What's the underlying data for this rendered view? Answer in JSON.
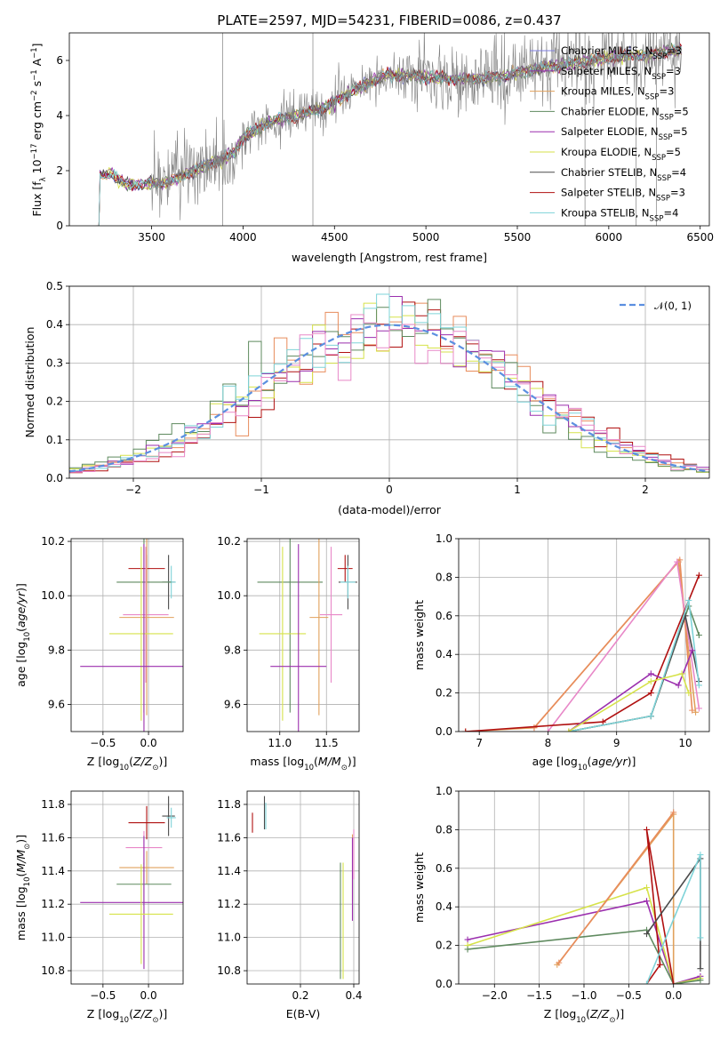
{
  "chart_data": [
    {
      "type": "line",
      "title": "PLATE=2597, MJD=54231, FIBERID=0086, z=0.437",
      "xlabel": "wavelength [Angstrom, rest frame]",
      "ylabel": "Flux [f$_\\lambda$ 10$^{-17}$ erg cm$^{-2}$ s$^{-1}$ A$^{-1}$]",
      "ylabel_parts": [
        "Flux [f",
        "λ",
        "10",
        "−17",
        " erg cm",
        "−2",
        " s",
        "−1",
        " A",
        "−1",
        "]"
      ],
      "xlim": [
        3050,
        6550
      ],
      "ylim": [
        0,
        7
      ],
      "xticks": [
        3500,
        4000,
        4500,
        5000,
        5500,
        6000,
        6500
      ],
      "yticks": [
        0,
        2,
        4,
        6
      ],
      "grid": false,
      "legend_position": "top-right",
      "continuum_knots": {
        "x": [
          3200,
          3280,
          3350,
          3450,
          3600,
          3800,
          3950,
          4000,
          4150,
          4300,
          4450,
          4600,
          4800,
          5000,
          5200,
          5400,
          5600,
          5800,
          6000,
          6200,
          6400
        ],
        "y": [
          1.8,
          1.9,
          1.5,
          1.5,
          1.6,
          2.2,
          2.6,
          3.2,
          3.8,
          4.0,
          4.3,
          4.9,
          5.5,
          5.4,
          5.3,
          5.4,
          5.7,
          5.9,
          6.1,
          6.2,
          6.4
        ]
      },
      "data_series": {
        "name": "data",
        "color": "#808080"
      },
      "series": [
        {
          "name": "Chabrier MILES",
          "nssp": 3,
          "color": "#7f7fe0"
        },
        {
          "name": "Salpeter MILES",
          "nssp": 3,
          "color": "#8e3ba7"
        },
        {
          "name": "Kroupa MILES",
          "nssp": 3,
          "color": "#e1a15c"
        },
        {
          "name": "Chabrier ELODIE",
          "nssp": 5,
          "color": "#5f8a5f"
        },
        {
          "name": "Salpeter ELODIE",
          "nssp": 5,
          "color": "#9b2fae"
        },
        {
          "name": "Kroupa ELODIE",
          "nssp": 5,
          "color": "#d6e24a"
        },
        {
          "name": "Chabrier STELIB",
          "nssp": 4,
          "color": "#4b4b4b"
        },
        {
          "name": "Salpeter STELIB",
          "nssp": 3,
          "color": "#b01010"
        },
        {
          "name": "Kroupa STELIB",
          "nssp": 4,
          "color": "#7ed3d8"
        }
      ],
      "legend_sub": "SSP"
    },
    {
      "type": "line",
      "xlabel": "(data-model)/error",
      "ylabel": "Normed distribution",
      "xlim": [
        -2.5,
        2.5
      ],
      "ylim": [
        0,
        0.5
      ],
      "xticks": [
        -2,
        -1,
        0,
        1,
        2
      ],
      "yticks": [
        0.0,
        0.1,
        0.2,
        0.3,
        0.4,
        0.5
      ],
      "grid": true,
      "legend_position": "top-right",
      "reference_curve": {
        "name": "𝒩(0, 1)",
        "color": "#5b8fe0",
        "style": "dashed"
      },
      "bin_width": 0.1,
      "histograms": [
        {
          "color": "#e88c5c",
          "shift": 0.0
        },
        {
          "color": "#b01010",
          "shift": 0.15
        },
        {
          "color": "#d6e24a",
          "shift": -0.05
        },
        {
          "color": "#5f8a5f",
          "shift": -0.1
        },
        {
          "color": "#9b2fae",
          "shift": 0.05
        },
        {
          "color": "#7ed3d8",
          "shift": 0.02
        },
        {
          "color": "#e888c8",
          "shift": 0.08
        }
      ]
    },
    {
      "type": "scatter",
      "xlabel": "Z [log10(Z/Z⊙)]",
      "ylabel": "age  [log10(age/yr)]",
      "xlim": [
        -0.85,
        0.38
      ],
      "ylim": [
        9.5,
        10.21
      ],
      "xticks": [
        -0.5,
        0.0
      ],
      "yticks": [
        9.6,
        9.8,
        10.0,
        10.2
      ],
      "points": [
        {
          "x": -0.02,
          "y": 10.1,
          "ex": 0.2,
          "ey": 0.05,
          "color": "#b01010"
        },
        {
          "x": 0.22,
          "y": 10.05,
          "ex": 0.07,
          "ey": 0.1,
          "color": "#4b4b4b"
        },
        {
          "x": 0.25,
          "y": 10.05,
          "ex": 0.05,
          "ey": 0.06,
          "color": "#7ed3d8"
        },
        {
          "x": -0.05,
          "y": 10.05,
          "ex": 0.3,
          "ey": 0.48,
          "color": "#5f8a5f"
        },
        {
          "x": -0.03,
          "y": 9.93,
          "ex": 0.25,
          "ey": 0.25,
          "color": "#e888c8"
        },
        {
          "x": -0.02,
          "y": 9.92,
          "ex": 0.3,
          "ey": 0.36,
          "color": "#e1a15c"
        },
        {
          "x": -0.08,
          "y": 9.86,
          "ex": 0.35,
          "ey": 0.32,
          "color": "#d6e24a"
        },
        {
          "x": -0.05,
          "y": 9.74,
          "ex": 0.7,
          "ey": 0.45,
          "color": "#9b2fae"
        }
      ]
    },
    {
      "type": "scatter",
      "xlabel": "mass [log10(M/M⊙)]",
      "ylabel": "",
      "xlim": [
        10.65,
        11.85
      ],
      "ylim": [
        9.5,
        10.21
      ],
      "xticks": [
        11.0,
        11.5
      ],
      "yticks": [
        9.6,
        9.8,
        10.0,
        10.2
      ],
      "points": [
        {
          "x": 11.7,
          "y": 10.1,
          "ex": 0.08,
          "ey": 0.05,
          "color": "#b01010"
        },
        {
          "x": 11.73,
          "y": 10.05,
          "ex": 0.1,
          "ey": 0.1,
          "color": "#4b4b4b"
        },
        {
          "x": 11.73,
          "y": 10.05,
          "ex": 0.08,
          "ey": 0.06,
          "color": "#7ed3d8"
        },
        {
          "x": 11.11,
          "y": 10.05,
          "ex": 0.35,
          "ey": 0.48,
          "color": "#5f8a5f"
        },
        {
          "x": 11.55,
          "y": 9.93,
          "ex": 0.12,
          "ey": 0.25,
          "color": "#e888c8"
        },
        {
          "x": 11.42,
          "y": 9.92,
          "ex": 0.1,
          "ey": 0.36,
          "color": "#e1a15c"
        },
        {
          "x": 11.03,
          "y": 9.86,
          "ex": 0.25,
          "ey": 0.32,
          "color": "#d6e24a"
        },
        {
          "x": 11.2,
          "y": 9.74,
          "ex": 0.3,
          "ey": 0.45,
          "color": "#9b2fae"
        }
      ]
    },
    {
      "type": "line",
      "xlabel": "age  [log10(age/yr)]",
      "ylabel": "mass weight",
      "xlim": [
        6.7,
        10.35
      ],
      "ylim": [
        0,
        1
      ],
      "xticks": [
        7,
        8,
        9,
        10
      ],
      "yticks": [
        0.0,
        0.2,
        0.4,
        0.6,
        0.8,
        1.0
      ],
      "grid": true,
      "series": [
        {
          "color": "#e1a15c",
          "x": [
            6.8,
            7.8,
            9.9,
            10.15
          ],
          "y": [
            0.0,
            0.02,
            0.88,
            0.1
          ]
        },
        {
          "color": "#e88c5c",
          "x": [
            7.8,
            9.92,
            10.1
          ],
          "y": [
            0.02,
            0.89,
            0.11
          ]
        },
        {
          "color": "#e888c8",
          "x": [
            8.0,
            9.88,
            10.2
          ],
          "y": [
            0.0,
            0.88,
            0.12
          ]
        },
        {
          "color": "#b01010",
          "x": [
            6.8,
            8.8,
            9.5,
            10.2
          ],
          "y": [
            0.0,
            0.05,
            0.2,
            0.81
          ]
        },
        {
          "color": "#5f8a5f",
          "x": [
            8.3,
            9.5,
            10.05,
            10.2
          ],
          "y": [
            0.0,
            0.08,
            0.65,
            0.5
          ]
        },
        {
          "color": "#4b4b4b",
          "x": [
            8.3,
            9.5,
            10.0,
            10.2
          ],
          "y": [
            0.0,
            0.08,
            0.6,
            0.26
          ]
        },
        {
          "color": "#7ed3d8",
          "x": [
            8.3,
            9.5,
            10.05,
            10.2
          ],
          "y": [
            0.0,
            0.08,
            0.68,
            0.24
          ]
        },
        {
          "color": "#9b2fae",
          "x": [
            8.3,
            9.5,
            9.9,
            10.1
          ],
          "y": [
            0.0,
            0.3,
            0.24,
            0.42
          ]
        },
        {
          "color": "#d6e24a",
          "x": [
            8.3,
            9.5,
            9.95,
            10.05
          ],
          "y": [
            0.0,
            0.26,
            0.3,
            0.2
          ]
        }
      ]
    },
    {
      "type": "scatter",
      "xlabel": "Z [log10(Z/Z⊙)]",
      "ylabel": "mass [log10(M/M⊙)]",
      "xlim": [
        -0.85,
        0.38
      ],
      "ylim": [
        10.72,
        11.88
      ],
      "xticks": [
        -0.5,
        0.0
      ],
      "yticks": [
        10.8,
        11.0,
        11.2,
        11.4,
        11.6,
        11.8
      ],
      "points": [
        {
          "x": -0.02,
          "y": 11.69,
          "ex": 0.2,
          "ey": 0.1,
          "color": "#b01010"
        },
        {
          "x": 0.22,
          "y": 11.73,
          "ex": 0.07,
          "ey": 0.12,
          "color": "#4b4b4b"
        },
        {
          "x": 0.25,
          "y": 11.72,
          "ex": 0.05,
          "ey": 0.06,
          "color": "#7ed3d8"
        },
        {
          "x": -0.05,
          "y": 11.54,
          "ex": 0.2,
          "ey": 0.1,
          "color": "#e888c8"
        },
        {
          "x": -0.02,
          "y": 11.42,
          "ex": 0.3,
          "ey": 0.1,
          "color": "#e1a15c"
        },
        {
          "x": -0.05,
          "y": 11.32,
          "ex": 0.3,
          "ey": 0.13,
          "color": "#5f8a5f"
        },
        {
          "x": -0.05,
          "y": 11.21,
          "ex": 0.7,
          "ey": 0.4,
          "color": "#9b2fae"
        },
        {
          "x": -0.08,
          "y": 11.14,
          "ex": 0.35,
          "ey": 0.3,
          "color": "#d6e24a"
        }
      ]
    },
    {
      "type": "scatter",
      "xlabel": "E(B-V)",
      "ylabel": "",
      "xlim": [
        0.0,
        0.42
      ],
      "ylim": [
        10.72,
        11.88
      ],
      "xticks": [
        0.2,
        0.4
      ],
      "yticks": [
        10.8,
        11.0,
        11.2,
        11.4,
        11.6,
        11.8
      ],
      "points": [
        {
          "x": 0.02,
          "y": 11.69,
          "ex": 0,
          "ey": 0.06,
          "color": "#b01010"
        },
        {
          "x": 0.065,
          "y": 11.75,
          "ex": 0,
          "ey": 0.1,
          "color": "#4b4b4b"
        },
        {
          "x": 0.07,
          "y": 11.73,
          "ex": 0,
          "ey": 0.08,
          "color": "#7ed3d8"
        },
        {
          "x": 0.4,
          "y": 11.5,
          "ex": 0,
          "ey": 0.15,
          "color": "#e888c8"
        },
        {
          "x": 0.395,
          "y": 11.42,
          "ex": 0,
          "ey": 0.2,
          "color": "#e1a15c"
        },
        {
          "x": 0.35,
          "y": 11.1,
          "ex": 0,
          "ey": 0.35,
          "color": "#5f8a5f"
        },
        {
          "x": 0.395,
          "y": 11.35,
          "ex": 0,
          "ey": 0.25,
          "color": "#9b2fae"
        },
        {
          "x": 0.36,
          "y": 11.1,
          "ex": 0,
          "ey": 0.35,
          "color": "#d6e24a"
        }
      ]
    },
    {
      "type": "line",
      "xlabel": "Z [log10(Z/Z⊙)]",
      "ylabel": "mass weight",
      "xlim": [
        -2.4,
        0.4
      ],
      "ylim": [
        0,
        1
      ],
      "xticks": [
        -2.0,
        -1.5,
        -1.0,
        -0.5,
        0.0
      ],
      "yticks": [
        0.0,
        0.2,
        0.4,
        0.6,
        0.8,
        1.0
      ],
      "grid": true,
      "series": [
        {
          "color": "#9b2fae",
          "x": [
            -2.3,
            -0.3,
            0.0,
            0.3
          ],
          "y": [
            0.23,
            0.43,
            0.0,
            0.04
          ]
        },
        {
          "color": "#d6e24a",
          "x": [
            -2.3,
            -0.3,
            0.0,
            0.3
          ],
          "y": [
            0.2,
            0.5,
            0.0,
            0.03
          ]
        },
        {
          "color": "#5f8a5f",
          "x": [
            -2.3,
            -0.3,
            0.0,
            0.3
          ],
          "y": [
            0.18,
            0.28,
            0.0,
            0.02
          ]
        },
        {
          "color": "#e1a15c",
          "x": [
            -1.3,
            0.0,
            0.0
          ],
          "y": [
            0.1,
            0.88,
            0.0
          ]
        },
        {
          "color": "#e88c5c",
          "x": [
            -1.28,
            0.0
          ],
          "y": [
            0.11,
            0.89
          ]
        },
        {
          "color": "#b01010",
          "x": [
            -0.3,
            -0.15,
            -0.3,
            0.0
          ],
          "y": [
            0.0,
            0.1,
            0.8,
            0.0
          ]
        },
        {
          "color": "#4b4b4b",
          "x": [
            -0.3,
            0.3,
            0.3
          ],
          "y": [
            0.26,
            0.65,
            0.08
          ]
        },
        {
          "color": "#7ed3d8",
          "x": [
            -0.3,
            0.3,
            0.3
          ],
          "y": [
            0.0,
            0.67,
            0.24
          ]
        }
      ]
    }
  ]
}
